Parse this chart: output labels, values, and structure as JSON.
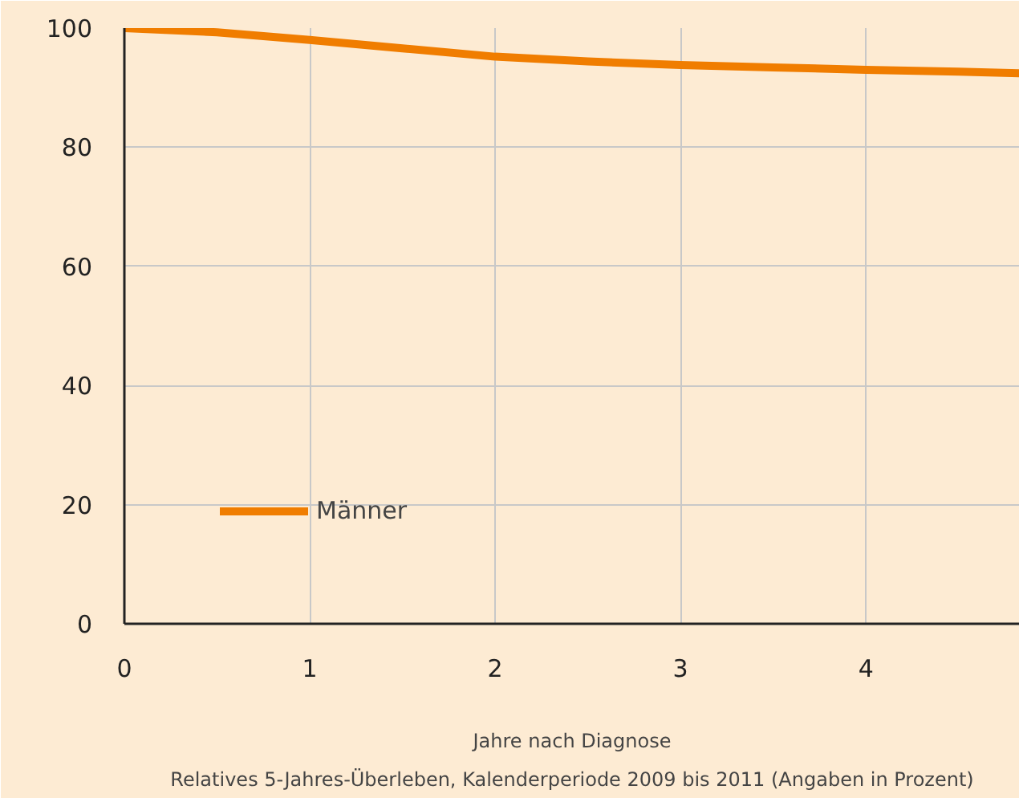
{
  "chart_data": {
    "type": "line",
    "xlabel": "Jahre nach Diagnose",
    "annotations": [
      "Relatives 5-Jahres-Überleben, Kalenderperiode 2009 bis 2011 (Angaben in Prozent)"
    ],
    "x": [
      0,
      0.5,
      1,
      1.5,
      2,
      2.5,
      3,
      3.5,
      4,
      4.5,
      4.83
    ],
    "series": [
      {
        "name": "Männer",
        "color": "#f07d00",
        "values": [
          100,
          99.3,
          98,
          96.6,
          95.2,
          94.4,
          93.8,
          93.4,
          93,
          92.7,
          92.4
        ]
      }
    ],
    "xlim": [
      0,
      4.83
    ],
    "ylim": [
      0,
      100
    ],
    "xticks": [
      0,
      1,
      2,
      3,
      4
    ],
    "yticks": [
      0,
      20,
      40,
      60,
      80,
      100
    ],
    "grid": true,
    "legend": "bottom left",
    "marker": "none",
    "line_style": "solid"
  }
}
